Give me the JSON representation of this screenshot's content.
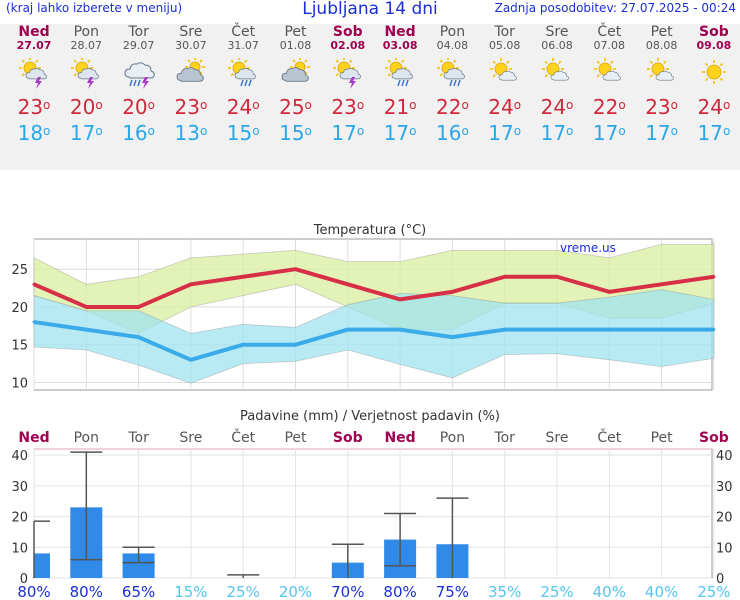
{
  "header": {
    "left_note": "(kraj lahko izberete v meniju)",
    "title": "Ljubljana 14 dni",
    "updated": "Zadnja posodobitev: 27.07.2025 - 00:24"
  },
  "days": [
    {
      "name": "Ned",
      "date": "27.07",
      "weekend": true,
      "icon": "sun-cloud-storm-icon",
      "tmax": "23",
      "tmin": "18",
      "prob": "80%"
    },
    {
      "name": "Pon",
      "date": "28.07",
      "weekend": false,
      "icon": "sun-cloud-storm-icon",
      "tmax": "20",
      "tmin": "17",
      "prob": "80%"
    },
    {
      "name": "Tor",
      "date": "29.07",
      "weekend": false,
      "icon": "cloud-rain-storm-icon",
      "tmax": "20",
      "tmin": "16",
      "prob": "65%"
    },
    {
      "name": "Sre",
      "date": "30.07",
      "weekend": false,
      "icon": "sun-cloudy-icon",
      "tmax": "23",
      "tmin": "13",
      "prob": "15%"
    },
    {
      "name": "Čet",
      "date": "31.07",
      "weekend": false,
      "icon": "sun-cloud-rain-icon",
      "tmax": "24",
      "tmin": "15",
      "prob": "25%"
    },
    {
      "name": "Pet",
      "date": "01.08",
      "weekend": false,
      "icon": "sun-cloudy-icon",
      "tmax": "25",
      "tmin": "15",
      "prob": "20%"
    },
    {
      "name": "Sob",
      "date": "02.08",
      "weekend": true,
      "icon": "sun-cloud-storm-icon",
      "tmax": "23",
      "tmin": "17",
      "prob": "70%"
    },
    {
      "name": "Ned",
      "date": "03.08",
      "weekend": true,
      "icon": "sun-cloud-rain-icon",
      "tmax": "21",
      "tmin": "17",
      "prob": "80%"
    },
    {
      "name": "Pon",
      "date": "04.08",
      "weekend": false,
      "icon": "sun-cloud-rain-icon",
      "tmax": "22",
      "tmin": "16",
      "prob": "75%"
    },
    {
      "name": "Tor",
      "date": "05.08",
      "weekend": false,
      "icon": "sun-small-cloud-icon",
      "tmax": "24",
      "tmin": "17",
      "prob": "35%"
    },
    {
      "name": "Sre",
      "date": "06.08",
      "weekend": false,
      "icon": "sun-small-cloud-icon",
      "tmax": "24",
      "tmin": "17",
      "prob": "25%"
    },
    {
      "name": "Čet",
      "date": "07.08",
      "weekend": false,
      "icon": "sun-small-cloud-icon",
      "tmax": "22",
      "tmin": "17",
      "prob": "40%"
    },
    {
      "name": "Pet",
      "date": "08.08",
      "weekend": false,
      "icon": "sun-small-cloud-icon",
      "tmax": "23",
      "tmin": "17",
      "prob": "40%"
    },
    {
      "name": "Sob",
      "date": "09.08",
      "weekend": true,
      "icon": "sun-icon",
      "tmax": "24",
      "tmin": "17",
      "prob": "25%"
    }
  ],
  "deg_symbol": "o",
  "chart_data": [
    {
      "type": "line",
      "title": "Temperatura (°C)",
      "watermark": "vreme.us",
      "ylim": [
        9,
        29
      ],
      "yticks": [
        10,
        15,
        20,
        25
      ],
      "grid": true,
      "series": [
        {
          "name": "tmax",
          "values": [
            23,
            20,
            20,
            23,
            24,
            25,
            23,
            21,
            22,
            24,
            24,
            22,
            23,
            24
          ],
          "color": "#d62f46"
        },
        {
          "name": "tmin",
          "values": [
            18,
            17,
            16,
            13,
            15,
            15,
            17,
            17,
            16,
            17,
            17,
            17,
            17,
            17
          ],
          "color": "#3aaae8"
        },
        {
          "name": "tmax_upper",
          "values": [
            26.5,
            23,
            24,
            26.5,
            27,
            27.5,
            26,
            26,
            27.5,
            27.5,
            27.5,
            26.5,
            28.3,
            28.3
          ],
          "color": "#d9ee9e"
        },
        {
          "name": "tmax_lower",
          "values": [
            21.5,
            19.5,
            16.5,
            20,
            21.5,
            23,
            20,
            17,
            17,
            20.5,
            20.5,
            18.5,
            18.5,
            20.5
          ],
          "color": "#d9ee9e"
        },
        {
          "name": "tmin_upper",
          "values": [
            21.5,
            19.5,
            19.5,
            16.5,
            17.7,
            17.3,
            20.3,
            21.8,
            21.5,
            20.5,
            20.5,
            21.3,
            22.3,
            21
          ],
          "color": "#9fe3ef"
        },
        {
          "name": "tmin_lower",
          "values": [
            14.7,
            14.3,
            12.3,
            9.9,
            12.5,
            12.8,
            14.3,
            12.4,
            10.6,
            13.7,
            13.8,
            13,
            12.1,
            13.2
          ],
          "color": "#9fe3ef"
        }
      ]
    },
    {
      "type": "bar",
      "title": "Padavine (mm) / Verjetnost padavin (%)",
      "ylim": [
        0,
        42
      ],
      "yticks": [
        0,
        10,
        20,
        30,
        40
      ],
      "categories": [
        "Ned",
        "Pon",
        "Tor",
        "Sre",
        "Čet",
        "Pet",
        "Sob",
        "Ned",
        "Pon",
        "Tor",
        "Sre",
        "Čet",
        "Pet",
        "Sob"
      ],
      "values": [
        8,
        23,
        8,
        0,
        0,
        0,
        5,
        12.5,
        11,
        0,
        0,
        0,
        0,
        0
      ],
      "error_low": [
        0,
        6,
        5,
        0,
        0,
        0,
        0,
        4,
        0,
        0,
        0,
        0,
        0,
        0
      ],
      "error_high": [
        18.5,
        41,
        10,
        0,
        1,
        0,
        11,
        21,
        26,
        0,
        0,
        0,
        0,
        0
      ],
      "probabilities": [
        "80%",
        "80%",
        "65%",
        "15%",
        "25%",
        "20%",
        "70%",
        "80%",
        "75%",
        "35%",
        "25%",
        "40%",
        "40%",
        "25%"
      ],
      "bar_color": "#2f8ae8",
      "high_prob_color": "#1a2fd6",
      "low_prob_color": "#55c4f0",
      "weekend_color": "#a0004f",
      "grid": true
    }
  ]
}
